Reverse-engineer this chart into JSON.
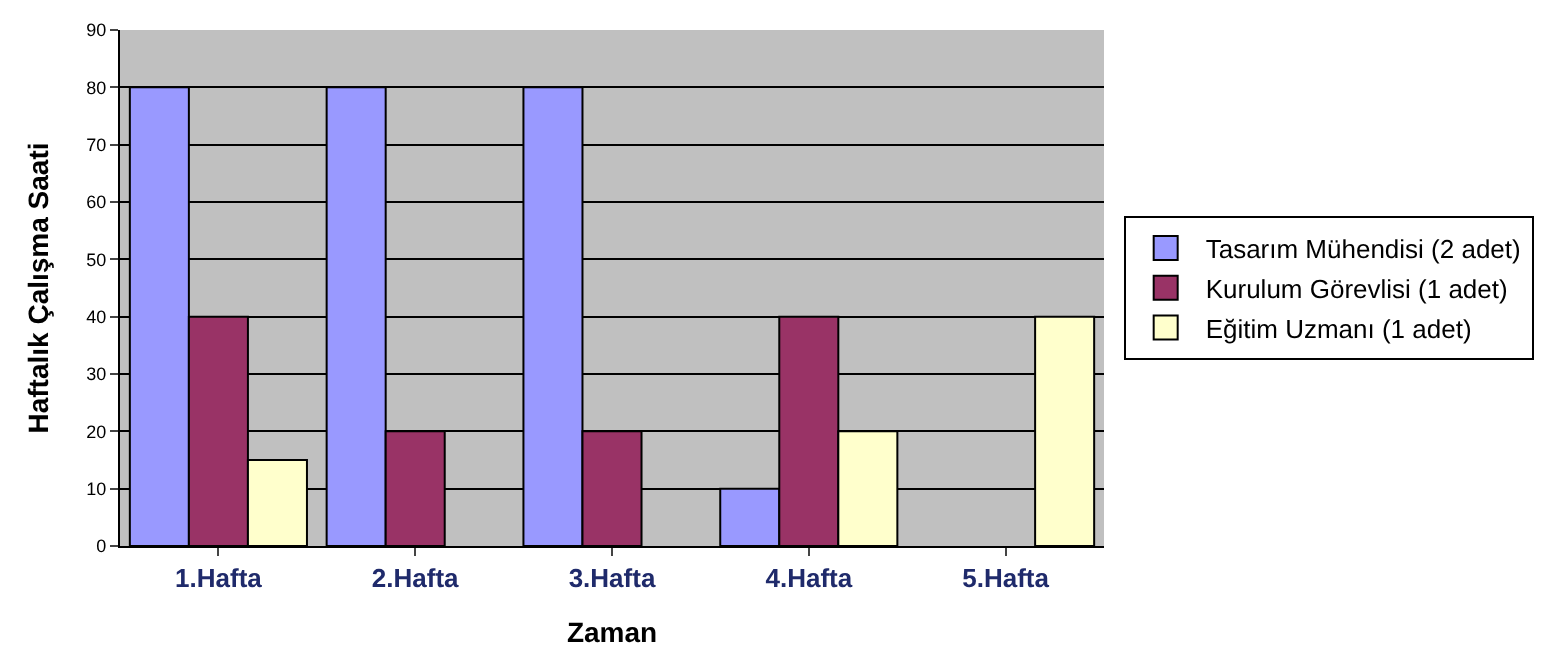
{
  "chart_data": {
    "type": "bar",
    "xlabel": "Zaman",
    "ylabel": "Haftalık Çalışma Saati",
    "categories": [
      "1.Hafta",
      "2.Hafta",
      "3.Hafta",
      "4.Hafta",
      "5.Hafta"
    ],
    "series": [
      {
        "name": "Tasarım Mühendisi (2 adet)",
        "color": "#9999ff",
        "values": [
          80,
          80,
          80,
          10,
          null
        ]
      },
      {
        "name": "Kurulum Görevlisi (1 adet)",
        "color": "#993366",
        "values": [
          40,
          20,
          20,
          40,
          null
        ]
      },
      {
        "name": "Eğitim Uzmanı (1 adet)",
        "color": "#ffffcc",
        "values": [
          15,
          null,
          null,
          20,
          40
        ]
      }
    ],
    "ylim": [
      0,
      90
    ],
    "yticks": [
      0,
      10,
      20,
      30,
      40,
      50,
      60,
      70,
      80,
      90
    ],
    "grid": "y",
    "legend": "right"
  }
}
